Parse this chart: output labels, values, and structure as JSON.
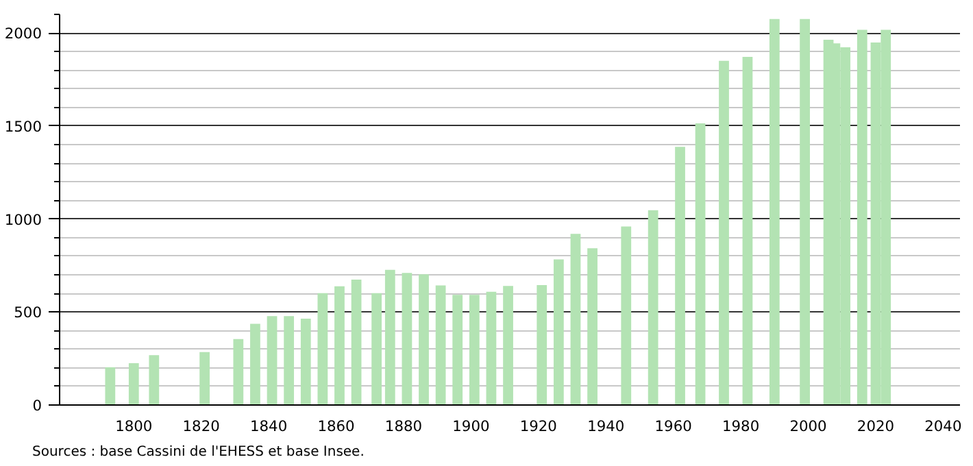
{
  "chart_data": {
    "type": "bar",
    "x": [
      1793,
      1800,
      1806,
      1821,
      1831,
      1836,
      1841,
      1846,
      1851,
      1856,
      1861,
      1866,
      1872,
      1876,
      1881,
      1886,
      1891,
      1896,
      1901,
      1906,
      1911,
      1921,
      1926,
      1931,
      1936,
      1946,
      1954,
      1962,
      1968,
      1975,
      1982,
      1990,
      1999,
      2006,
      2008,
      2011,
      2016,
      2020,
      2023
    ],
    "values": [
      203,
      225,
      268,
      285,
      355,
      437,
      478,
      478,
      464,
      601,
      638,
      674,
      601,
      727,
      710,
      703,
      643,
      592,
      592,
      609,
      640,
      645,
      783,
      920,
      843,
      960,
      1047,
      1388,
      1514,
      1850,
      1872,
      2075,
      2075,
      1964,
      1944,
      1923,
      2017,
      1949,
      2017
    ],
    "color": "#b3e3b3",
    "xlim": [
      1778,
      2045
    ],
    "xticks": [
      1800,
      1820,
      1840,
      1860,
      1880,
      1900,
      1920,
      1940,
      1960,
      1980,
      2000,
      2020,
      2040
    ],
    "ylim": [
      0,
      2100
    ],
    "yticks": [
      0,
      500,
      1000,
      1500,
      2000
    ],
    "grid": "y",
    "annotations": [
      "Sources : base Cassini de l'EHESS et base Insee."
    ]
  }
}
